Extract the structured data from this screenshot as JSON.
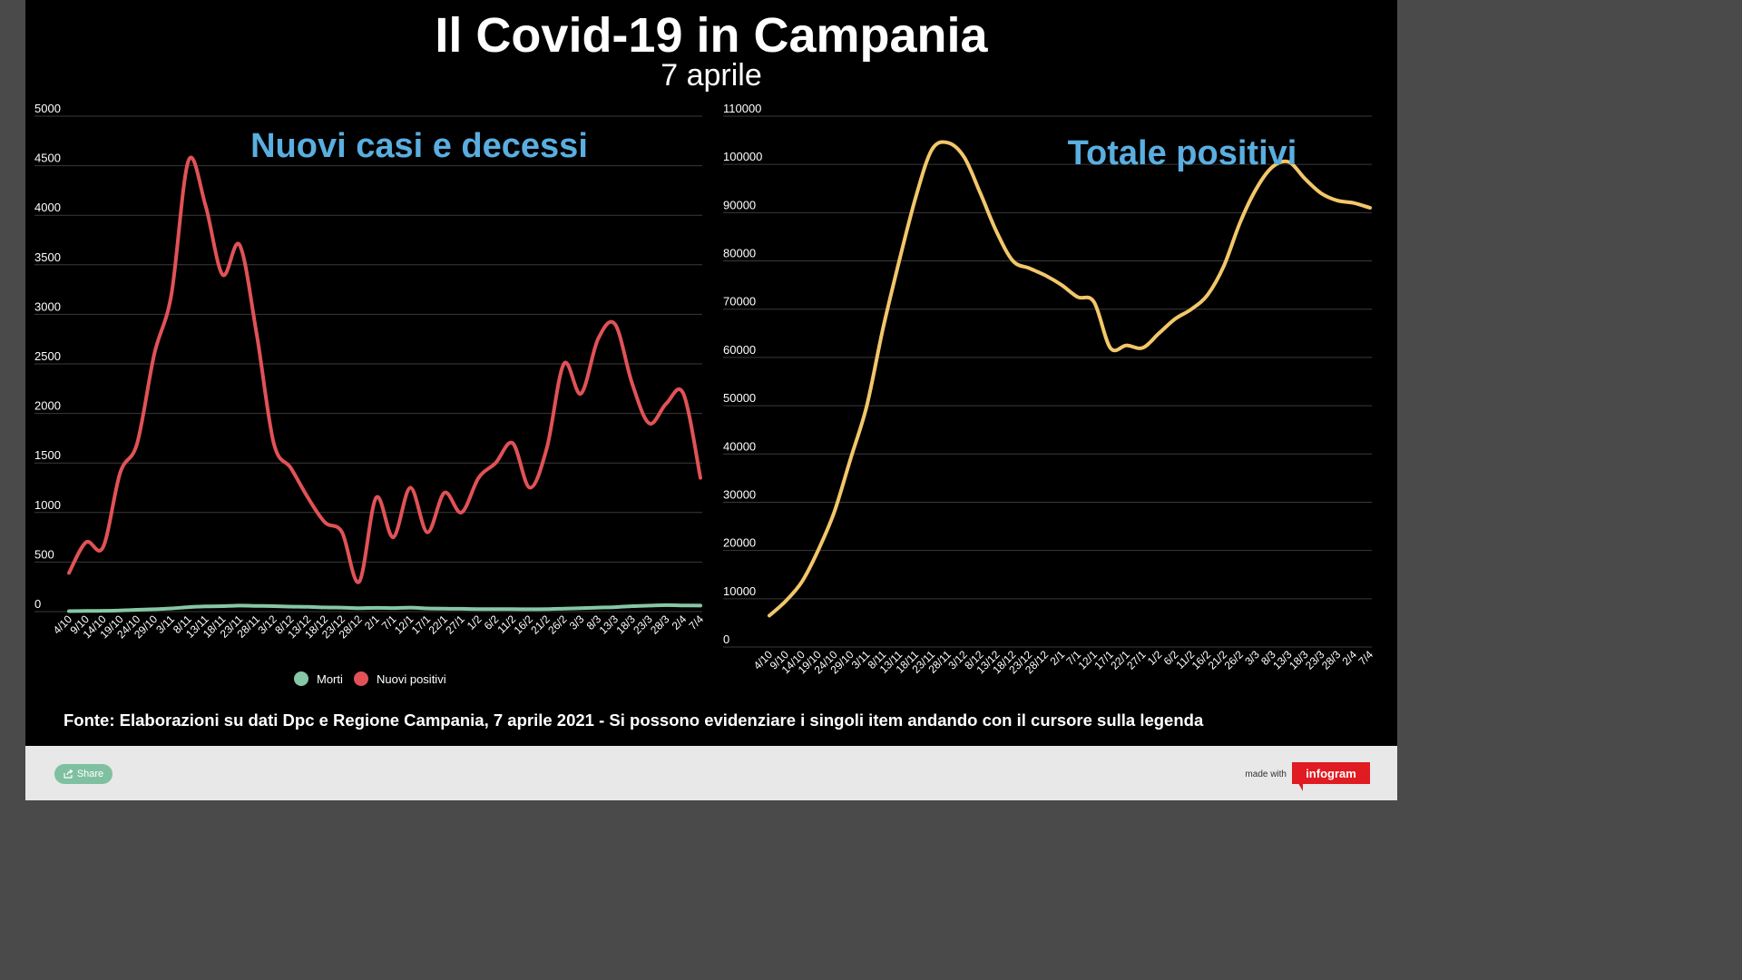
{
  "header": {
    "title": "Il Covid-19 in Campania",
    "subtitle": "7 aprile"
  },
  "footer": {
    "source": "Fonte: Elaborazioni su dati Dpc e Regione Campania, 7 aprile 2021 - Si possono evidenziare i singoli item andando con il cursore sulla legenda",
    "share_label": "Share",
    "made_with": "made with",
    "brand": "infogram"
  },
  "colors": {
    "nuovi_positivi": "#e05257",
    "morti": "#86c7a5",
    "totale_positivi": "#f2c76a",
    "chart_title": "#5aaee0"
  },
  "chart_data": [
    {
      "type": "line",
      "title": "Nuovi casi e decessi",
      "ylim": [
        0,
        5000
      ],
      "yticks": [
        0,
        500,
        1000,
        1500,
        2000,
        2500,
        3000,
        3500,
        4000,
        4500,
        5000
      ],
      "xticks": [
        "4/10",
        "9/10",
        "14/10",
        "19/10",
        "24/10",
        "29/10",
        "3/11",
        "8/11",
        "13/11",
        "18/11",
        "23/11",
        "28/11",
        "3/12",
        "8/12",
        "13/12",
        "18/12",
        "23/12",
        "28/12",
        "2/1",
        "7/1",
        "12/1",
        "17/1",
        "22/1",
        "27/1",
        "1/2",
        "6/2",
        "11/2",
        "16/2",
        "21/2",
        "26/2",
        "3/3",
        "8/3",
        "13/3",
        "18/3",
        "23/3",
        "28/3",
        "2/4",
        "7/4"
      ],
      "legend": [
        "Morti",
        "Nuovi positivi"
      ],
      "legend_position": "bottom",
      "series": [
        {
          "name": "Nuovi positivi",
          "x": [
            "4/10",
            "9/10",
            "14/10",
            "19/10",
            "24/10",
            "29/10",
            "3/11",
            "8/11",
            "13/11",
            "18/11",
            "23/11",
            "28/11",
            "3/12",
            "8/12",
            "13/12",
            "18/12",
            "23/12",
            "28/12",
            "2/1",
            "7/1",
            "12/1",
            "17/1",
            "22/1",
            "27/1",
            "1/2",
            "6/2",
            "11/2",
            "16/2",
            "21/2",
            "26/2",
            "3/3",
            "8/3",
            "13/3",
            "18/3",
            "23/3",
            "28/3",
            "2/4",
            "7/4"
          ],
          "values": [
            390,
            700,
            650,
            1400,
            1700,
            2600,
            3200,
            4550,
            4100,
            3400,
            3700,
            2800,
            1700,
            1450,
            1150,
            900,
            800,
            300,
            1150,
            750,
            1250,
            800,
            1200,
            1000,
            1350,
            1500,
            1700,
            1250,
            1650,
            2500,
            2200,
            2750,
            2900,
            2300,
            1900,
            2100,
            2200,
            1350
          ]
        },
        {
          "name": "Morti",
          "x": [
            "4/10",
            "9/10",
            "14/10",
            "19/10",
            "24/10",
            "29/10",
            "3/11",
            "8/11",
            "13/11",
            "18/11",
            "23/11",
            "28/11",
            "3/12",
            "8/12",
            "13/12",
            "18/12",
            "23/12",
            "28/12",
            "2/1",
            "7/1",
            "12/1",
            "17/1",
            "22/1",
            "27/1",
            "1/2",
            "6/2",
            "11/2",
            "16/2",
            "21/2",
            "26/2",
            "3/3",
            "8/3",
            "13/3",
            "18/3",
            "23/3",
            "28/3",
            "2/4",
            "7/4"
          ],
          "values": [
            5,
            6,
            8,
            12,
            18,
            24,
            32,
            45,
            52,
            55,
            60,
            58,
            55,
            50,
            48,
            42,
            40,
            35,
            38,
            36,
            40,
            32,
            30,
            28,
            25,
            26,
            25,
            24,
            25,
            30,
            35,
            40,
            45,
            55,
            60,
            65,
            62,
            60
          ]
        }
      ]
    },
    {
      "type": "line",
      "title": "Totale positivi",
      "ylim": [
        0,
        110000
      ],
      "yticks": [
        0,
        10000,
        20000,
        30000,
        40000,
        50000,
        60000,
        70000,
        80000,
        90000,
        100000,
        110000
      ],
      "xticks": [
        "4/10",
        "9/10",
        "14/10",
        "19/10",
        "24/10",
        "29/10",
        "3/11",
        "8/11",
        "13/11",
        "18/11",
        "23/11",
        "28/11",
        "3/12",
        "8/12",
        "13/12",
        "18/12",
        "23/12",
        "28/12",
        "2/1",
        "7/1",
        "12/1",
        "17/1",
        "22/1",
        "27/1",
        "1/2",
        "6/2",
        "11/2",
        "16/2",
        "21/2",
        "26/2",
        "3/3",
        "8/3",
        "13/3",
        "18/3",
        "23/3",
        "28/3",
        "2/4",
        "7/4"
      ],
      "series": [
        {
          "name": "Totale positivi",
          "x": [
            "4/10",
            "9/10",
            "14/10",
            "19/10",
            "24/10",
            "29/10",
            "3/11",
            "8/11",
            "13/11",
            "18/11",
            "23/11",
            "28/11",
            "3/12",
            "8/12",
            "13/12",
            "18/12",
            "23/12",
            "28/12",
            "2/1",
            "7/1",
            "12/1",
            "17/1",
            "22/1",
            "27/1",
            "1/2",
            "6/2",
            "11/2",
            "16/2",
            "21/2",
            "26/2",
            "3/3",
            "8/3",
            "13/3",
            "18/3",
            "23/3",
            "28/3",
            "2/4",
            "7/4"
          ],
          "values": [
            6500,
            9500,
            13500,
            20000,
            28000,
            39000,
            50000,
            66000,
            80000,
            93000,
            103000,
            104500,
            101500,
            94000,
            86000,
            80000,
            78500,
            77000,
            75000,
            72500,
            71500,
            62000,
            62500,
            62000,
            65000,
            68000,
            70000,
            73000,
            79000,
            88000,
            95000,
            99500,
            100500,
            97000,
            94000,
            92500,
            92000,
            91000
          ]
        }
      ]
    }
  ]
}
